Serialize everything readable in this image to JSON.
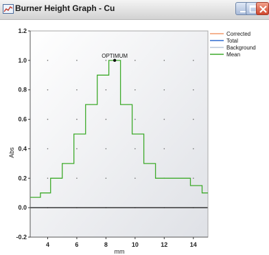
{
  "window": {
    "title": "Burner Height Graph - Cu",
    "buttons": {
      "minimize": "minimize-icon",
      "maximize": "maximize-icon",
      "close": "close-icon"
    }
  },
  "chart_data": {
    "type": "line",
    "title": "",
    "xlabel": "mm",
    "ylabel": "Abs",
    "xlim": [
      2.8,
      15
    ],
    "ylim": [
      -0.2,
      1.2
    ],
    "x_ticks": [
      4,
      6,
      8,
      10,
      12,
      14
    ],
    "y_ticks": [
      -0.2,
      0.0,
      0.2,
      0.4,
      0.6,
      0.8,
      1.0,
      1.2
    ],
    "grid": "dotted",
    "legend_position": "top-right",
    "annotation": {
      "text": "OPTIMUM",
      "x": 8.6,
      "y": 1.0
    },
    "series": [
      {
        "name": "Corrected",
        "color": "#f29a6c",
        "values": []
      },
      {
        "name": "Total",
        "color": "#2e6bd1",
        "values": []
      },
      {
        "name": "Background",
        "color": "#b9c6d8",
        "values": []
      },
      {
        "name": "Mean",
        "color": "#3daa2a",
        "x": [
          2.8,
          3.5,
          3.5,
          4.2,
          4.2,
          5.0,
          5.0,
          5.8,
          5.8,
          6.6,
          6.6,
          7.4,
          7.4,
          8.2,
          8.2,
          9.0,
          9.0,
          9.8,
          9.8,
          10.6,
          10.6,
          11.4,
          11.4,
          13.8,
          13.8,
          14.6,
          14.6,
          15.0
        ],
        "values": [
          0.07,
          0.07,
          0.1,
          0.1,
          0.2,
          0.2,
          0.3,
          0.3,
          0.5,
          0.5,
          0.7,
          0.7,
          0.9,
          0.9,
          1.0,
          1.0,
          0.7,
          0.7,
          0.5,
          0.5,
          0.3,
          0.3,
          0.2,
          0.2,
          0.15,
          0.15,
          0.1,
          0.1
        ]
      }
    ]
  }
}
